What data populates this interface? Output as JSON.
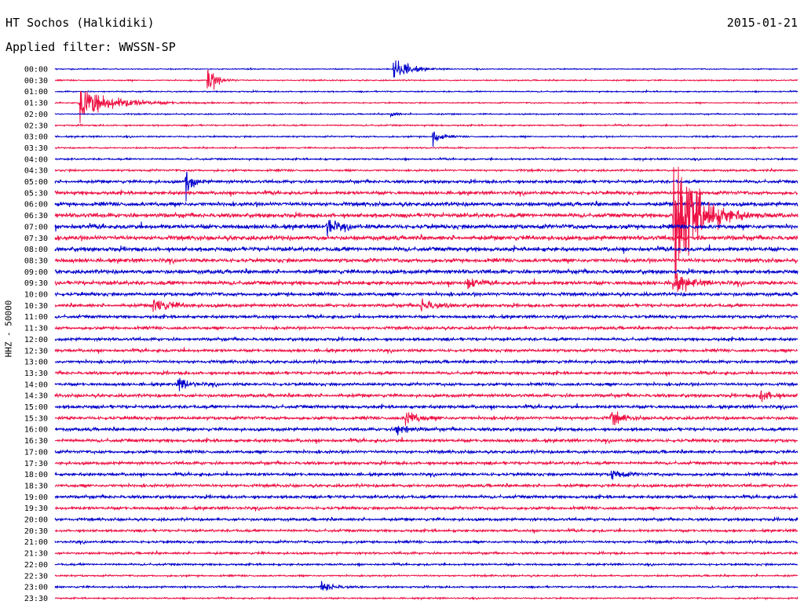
{
  "header": {
    "station": "HT Sochos (Halkidiki)",
    "date": "2015-01-21",
    "filter": "Applied filter: WWSSN-SP",
    "channel": "HHZ - 50000"
  },
  "chart_data": {
    "type": "line",
    "title": "HT Sochos (Halkidiki)",
    "date": "2015-01-21",
    "filter": "WWSSN-SP",
    "ylabel": "HHZ - 50000",
    "rows": [
      "00:00",
      "00:30",
      "01:00",
      "01:30",
      "02:00",
      "02:30",
      "03:00",
      "03:30",
      "04:00",
      "04:30",
      "05:00",
      "05:30",
      "06:00",
      "06:30",
      "07:00",
      "07:30",
      "08:00",
      "08:30",
      "09:00",
      "09:30",
      "10:00",
      "10:30",
      "11:00",
      "11:30",
      "12:00",
      "12:30",
      "13:00",
      "13:30",
      "14:00",
      "14:30",
      "15:00",
      "15:30",
      "16:00",
      "16:30",
      "17:00",
      "17:30",
      "18:00",
      "18:30",
      "19:00",
      "19:30",
      "20:00",
      "20:30",
      "21:00",
      "21:30",
      "22:00",
      "22:30",
      "23:00",
      "23:30"
    ],
    "colors": [
      "#0000cc",
      "#ee1144"
    ],
    "noise": [
      0.4,
      0.5,
      0.5,
      0.5,
      0.5,
      0.6,
      0.6,
      0.6,
      0.7,
      0.8,
      1.2,
      1.4,
      1.6,
      1.7,
      1.8,
      1.8,
      1.7,
      1.6,
      1.6,
      1.6,
      1.4,
      1.3,
      1.2,
      1.2,
      1.2,
      1.2,
      1.2,
      1.2,
      1.2,
      1.3,
      1.3,
      1.3,
      1.3,
      1.3,
      1.2,
      1.2,
      1.2,
      1.2,
      1.2,
      1.2,
      1.1,
      1.0,
      1.0,
      0.9,
      0.8,
      0.7,
      0.7,
      0.6
    ],
    "events": [
      {
        "row": 0,
        "t": 13.7,
        "amp": 16,
        "dur": 1.2
      },
      {
        "row": 1,
        "t": 6.2,
        "amp": 14,
        "dur": 0.8
      },
      {
        "row": 3,
        "t": 1.0,
        "amp": 18,
        "dur": 3.0
      },
      {
        "row": 4,
        "t": 13.6,
        "amp": 4,
        "dur": 0.4
      },
      {
        "row": 6,
        "t": 15.3,
        "amp": 9,
        "dur": 0.6
      },
      {
        "row": 10,
        "t": 5.3,
        "amp": 14,
        "dur": 0.6
      },
      {
        "row": 13,
        "t": 25.0,
        "amp": 90,
        "dur": 2.0
      },
      {
        "row": 14,
        "t": 11.0,
        "amp": 10,
        "dur": 0.8
      },
      {
        "row": 19,
        "t": 16.7,
        "amp": 8,
        "dur": 0.6
      },
      {
        "row": 19,
        "t": 25.0,
        "amp": 9,
        "dur": 1.5
      },
      {
        "row": 21,
        "t": 4.0,
        "amp": 8,
        "dur": 1.5
      },
      {
        "row": 21,
        "t": 14.8,
        "amp": 7,
        "dur": 1.2
      },
      {
        "row": 28,
        "t": 5.0,
        "amp": 6,
        "dur": 1.0
      },
      {
        "row": 29,
        "t": 28.5,
        "amp": 7,
        "dur": 1.0
      },
      {
        "row": 31,
        "t": 14.2,
        "amp": 9,
        "dur": 1.0
      },
      {
        "row": 31,
        "t": 22.5,
        "amp": 7,
        "dur": 1.0
      },
      {
        "row": 32,
        "t": 13.8,
        "amp": 9,
        "dur": 0.8
      },
      {
        "row": 36,
        "t": 22.5,
        "amp": 6,
        "dur": 1.0
      },
      {
        "row": 46,
        "t": 10.8,
        "amp": 6,
        "dur": 1.0
      }
    ]
  }
}
